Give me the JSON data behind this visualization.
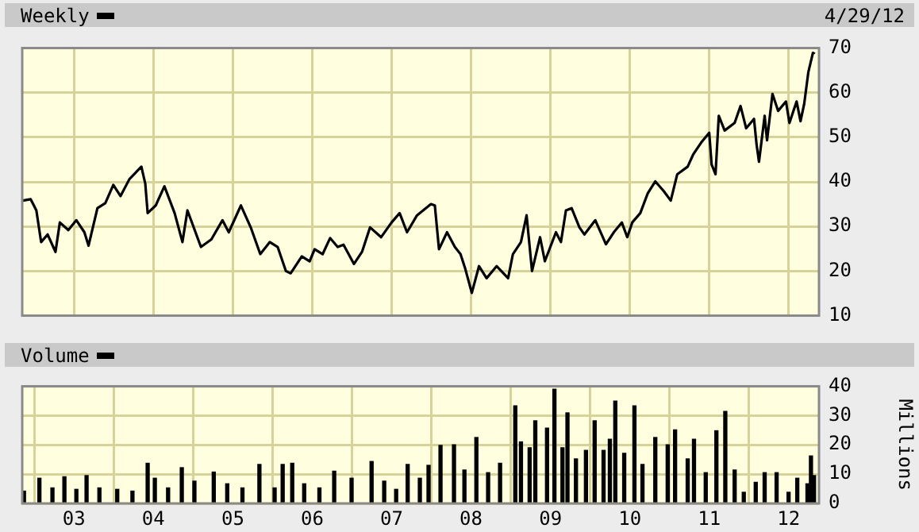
{
  "chart_data": [
    {
      "type": "line",
      "annotations": [
        "4/29/12"
      ],
      "legend": "top left",
      "grid": true,
      "tick_labels": "y",
      "xlim": [
        "2002-05-08",
        "2012-05-20"
      ],
      "xticks": [
        {
          "value": "2003-01-01",
          "label": null
        },
        {
          "value": "2004-01-01",
          "label": null
        },
        {
          "value": "2005-01-01",
          "label": null
        },
        {
          "value": "2006-01-01",
          "label": null
        },
        {
          "value": "2007-01-01",
          "label": null
        },
        {
          "value": "2008-01-01",
          "label": null
        },
        {
          "value": "2009-01-01",
          "label": null
        },
        {
          "value": "2010-01-01",
          "label": null
        },
        {
          "value": "2011-01-01",
          "label": null
        },
        {
          "value": "2012-01-01",
          "label": null
        }
      ],
      "ylim": [
        10,
        70
      ],
      "yticks": [
        10,
        20,
        30,
        40,
        50,
        60,
        70
      ],
      "series": [
        {
          "name": "Weekly",
          "color": "#000000",
          "x": [
            "2002-05-11",
            "2002-06-16",
            "2002-07-12",
            "2002-08-03",
            "2002-09-02",
            "2002-10-08",
            "2002-10-28",
            "2002-12-06",
            "2003-01-12",
            "2003-02-18",
            "2003-03-09",
            "2003-04-19",
            "2003-05-25",
            "2003-07-01",
            "2003-08-03",
            "2003-09-13",
            "2003-11-07",
            "2003-11-25",
            "2003-12-06",
            "2004-01-12",
            "2004-02-21",
            "2004-04-08",
            "2004-05-14",
            "2004-06-06",
            "2004-08-07",
            "2004-09-24",
            "2004-11-14",
            "2004-12-13",
            "2005-02-07",
            "2005-03-24",
            "2005-05-07",
            "2005-06-20",
            "2005-07-26",
            "2005-09-02",
            "2005-09-24",
            "2005-11-14",
            "2005-12-20",
            "2006-01-12",
            "2006-02-18",
            "2006-03-24",
            "2006-04-28",
            "2006-05-25",
            "2006-07-12",
            "2006-08-18",
            "2006-09-24",
            "2006-11-14",
            "2007-01-01",
            "2007-02-07",
            "2007-03-13",
            "2007-04-28",
            "2007-07-01",
            "2007-07-19",
            "2007-08-07",
            "2007-09-13",
            "2007-10-19",
            "2007-11-14",
            "2007-12-06",
            "2008-01-05",
            "2008-02-07",
            "2008-03-13",
            "2008-04-28",
            "2008-06-20",
            "2008-07-12",
            "2008-08-18",
            "2008-09-13",
            "2008-10-08",
            "2008-11-14",
            "2008-12-06",
            "2009-01-26",
            "2009-02-18",
            "2009-03-13",
            "2009-04-08",
            "2009-05-14",
            "2009-06-06",
            "2009-07-26",
            "2009-09-13",
            "2009-10-19",
            "2009-11-25",
            "2009-12-20",
            "2010-01-12",
            "2010-02-18",
            "2010-03-24",
            "2010-04-28",
            "2010-06-06",
            "2010-07-08",
            "2010-08-07",
            "2010-09-24",
            "2010-10-19",
            "2010-11-25",
            "2011-01-01",
            "2011-01-12",
            "2011-01-30",
            "2011-02-14",
            "2011-03-13",
            "2011-04-28",
            "2011-05-25",
            "2011-06-20",
            "2011-07-26",
            "2011-08-07",
            "2011-08-18",
            "2011-09-13",
            "2011-09-24",
            "2011-10-19",
            "2011-11-14",
            "2011-12-20",
            "2012-01-05",
            "2012-02-07",
            "2012-02-25",
            "2012-03-13",
            "2012-04-01",
            "2012-04-22",
            "2012-04-27"
          ],
          "values": [
            35.8,
            36.1,
            33.6,
            26.5,
            28.2,
            24.3,
            30.9,
            29.2,
            31.4,
            28.7,
            25.7,
            34.1,
            35.2,
            39.3,
            36.8,
            40.6,
            43.4,
            39.6,
            33.0,
            34.7,
            39.0,
            33.0,
            26.5,
            33.6,
            25.4,
            27.1,
            31.4,
            28.7,
            34.7,
            29.8,
            23.8,
            26.5,
            25.4,
            20.0,
            19.5,
            23.3,
            22.2,
            24.9,
            23.8,
            27.4,
            25.4,
            25.9,
            21.6,
            24.3,
            29.8,
            27.6,
            30.9,
            33.0,
            28.7,
            32.5,
            35.0,
            34.7,
            24.9,
            28.7,
            25.4,
            23.8,
            20.5,
            15.1,
            21.1,
            18.4,
            21.1,
            18.4,
            23.8,
            26.5,
            32.5,
            20.0,
            27.6,
            22.2,
            28.7,
            26.5,
            33.6,
            34.1,
            29.8,
            28.2,
            31.4,
            26.0,
            28.7,
            30.9,
            27.6,
            30.9,
            33.0,
            37.4,
            40.1,
            37.9,
            35.8,
            41.7,
            43.4,
            46.1,
            48.8,
            51.0,
            43.9,
            41.7,
            54.8,
            51.5,
            53.2,
            57.0,
            52.0,
            54.1,
            48.3,
            44.5,
            54.8,
            49.3,
            59.7,
            55.9,
            58.0,
            53.2,
            58.0,
            53.6,
            57.5,
            64.6,
            68.9,
            69.0
          ]
        }
      ]
    },
    {
      "type": "bar",
      "legend": "top left",
      "grid": true,
      "ylabel": "Millions",
      "xlim": [
        "2002-05-08",
        "2012-05-20"
      ],
      "xticks": [
        {
          "value": "2003-01-01",
          "label": "03"
        },
        {
          "value": "2004-01-01",
          "label": "04"
        },
        {
          "value": "2005-01-01",
          "label": "05"
        },
        {
          "value": "2006-01-01",
          "label": "06"
        },
        {
          "value": "2007-01-01",
          "label": "07"
        },
        {
          "value": "2008-01-01",
          "label": "08"
        },
        {
          "value": "2009-01-01",
          "label": "09"
        },
        {
          "value": "2010-01-01",
          "label": "10"
        },
        {
          "value": "2011-01-01",
          "label": "11"
        },
        {
          "value": "2012-01-01",
          "label": "12"
        }
      ],
      "ylim": [
        0,
        40
      ],
      "yticks": [
        0,
        10,
        20,
        30,
        40
      ],
      "series": [
        {
          "name": "Volume",
          "color": "#000000",
          "x": [
            "2002-05-16",
            "2002-07-26",
            "2002-09-24",
            "2002-11-18",
            "2003-01-12",
            "2003-02-28",
            "2003-04-28",
            "2003-07-19",
            "2003-09-27",
            "2003-12-06",
            "2004-01-08",
            "2004-03-09",
            "2004-05-11",
            "2004-07-08",
            "2004-10-05",
            "2004-12-06",
            "2005-02-14",
            "2005-05-03",
            "2005-07-12",
            "2005-08-18",
            "2005-10-01",
            "2005-11-25",
            "2006-02-03",
            "2006-04-12",
            "2006-07-01",
            "2006-10-01",
            "2006-11-28",
            "2007-01-22",
            "2007-03-16",
            "2007-05-11",
            "2007-06-20",
            "2007-08-14",
            "2007-10-15",
            "2007-12-02",
            "2008-01-26",
            "2008-03-20",
            "2008-05-14",
            "2008-07-23",
            "2008-08-18",
            "2008-09-27",
            "2008-10-23",
            "2008-12-16",
            "2009-01-19",
            "2009-02-25",
            "2009-03-20",
            "2009-04-28",
            "2009-06-13",
            "2009-07-23",
            "2009-09-02",
            "2009-10-01",
            "2009-10-26",
            "2009-12-06",
            "2010-01-22",
            "2010-02-28",
            "2010-04-28",
            "2010-06-24",
            "2010-07-28",
            "2010-09-24",
            "2010-10-23",
            "2010-12-16",
            "2011-02-03",
            "2011-03-16",
            "2011-04-28",
            "2011-06-09",
            "2011-08-03",
            "2011-09-13",
            "2011-11-07",
            "2012-01-01",
            "2012-02-10",
            "2012-03-28",
            "2012-04-13",
            "2012-04-27"
          ],
          "values": [
            4.2,
            8.6,
            5.3,
            9.1,
            4.8,
            9.5,
            5.3,
            4.8,
            4.2,
            13.7,
            8.6,
            5.3,
            12.2,
            7.6,
            10.7,
            6.7,
            5.3,
            13.3,
            5.3,
            13.3,
            13.7,
            6.7,
            5.3,
            11.0,
            8.6,
            14.3,
            7.6,
            4.8,
            13.3,
            8.6,
            13.0,
            19.8,
            20.0,
            11.4,
            22.5,
            10.5,
            13.7,
            33.3,
            21.0,
            19.0,
            28.2,
            25.7,
            39.0,
            19.0,
            30.9,
            15.2,
            18.1,
            28.2,
            18.1,
            21.9,
            34.9,
            17.1,
            33.3,
            13.3,
            22.5,
            20.0,
            25.1,
            15.2,
            21.9,
            10.5,
            24.8,
            31.4,
            11.4,
            3.8,
            7.2,
            10.5,
            10.5,
            3.8,
            8.6,
            6.7,
            16.2,
            9.5
          ]
        }
      ]
    }
  ]
}
